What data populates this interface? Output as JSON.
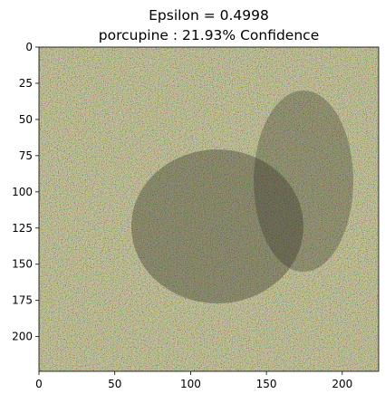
{
  "title_lines": [
    "Epsilon = 0.4998",
    "porcupine : 21.93% Confidence"
  ],
  "chart_data": {
    "type": "heatmap",
    "title": "Epsilon = 0.4998\nporcupine : 21.93% Confidence",
    "content": "adversarially perturbed RGB image",
    "image_size": [
      224,
      224
    ],
    "xlim": [
      0,
      224
    ],
    "ylim": [
      224,
      0
    ],
    "x_ticks": [
      0,
      50,
      100,
      150,
      200
    ],
    "y_ticks": [
      0,
      25,
      50,
      75,
      100,
      125,
      150,
      175,
      200
    ],
    "x_tick_labels": [
      "0",
      "50",
      "100",
      "150",
      "200"
    ],
    "y_tick_labels": [
      "0",
      "25",
      "50",
      "75",
      "100",
      "125",
      "150",
      "175",
      "200"
    ],
    "grid": false,
    "xlabel": "",
    "ylabel": ""
  }
}
